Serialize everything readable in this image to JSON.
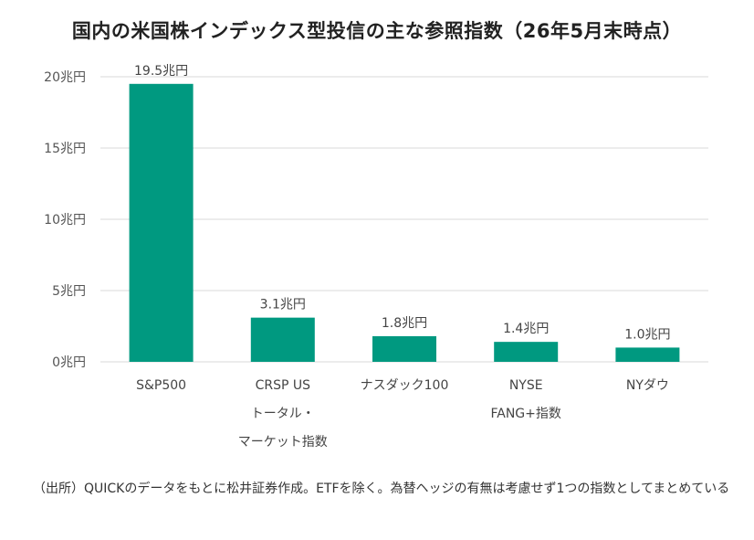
{
  "chart_data": {
    "type": "bar",
    "title": "国内の米国株インデックス型投信の主な参照指数（26年5月末時点）",
    "categories": [
      [
        "S&P500"
      ],
      [
        "CRSP US",
        "トータル・",
        "マーケット指数"
      ],
      [
        "ナスダック100"
      ],
      [
        "NYSE",
        "FANG+指数"
      ],
      [
        "NYダウ"
      ]
    ],
    "values": [
      19.5,
      3.1,
      1.8,
      1.4,
      1.0
    ],
    "data_labels": [
      "19.5兆円",
      "3.1兆円",
      "1.8兆円",
      "1.4兆円",
      "1.0兆円"
    ],
    "yticks": [
      0,
      5,
      10,
      15,
      20
    ],
    "ytick_labels": [
      "0兆円",
      "5兆円",
      "10兆円",
      "15兆円",
      "20兆円"
    ],
    "ylim": [
      0,
      20
    ],
    "xlabel": "",
    "ylabel": "",
    "grid": true,
    "bar_color": "#009980",
    "grid_color": "#d9d9d9"
  },
  "source_note": "（出所）QUICKのデータをもとに松井証券作成。ETFを除く。為替ヘッジの有無は考慮せず1つの指数としてまとめている"
}
